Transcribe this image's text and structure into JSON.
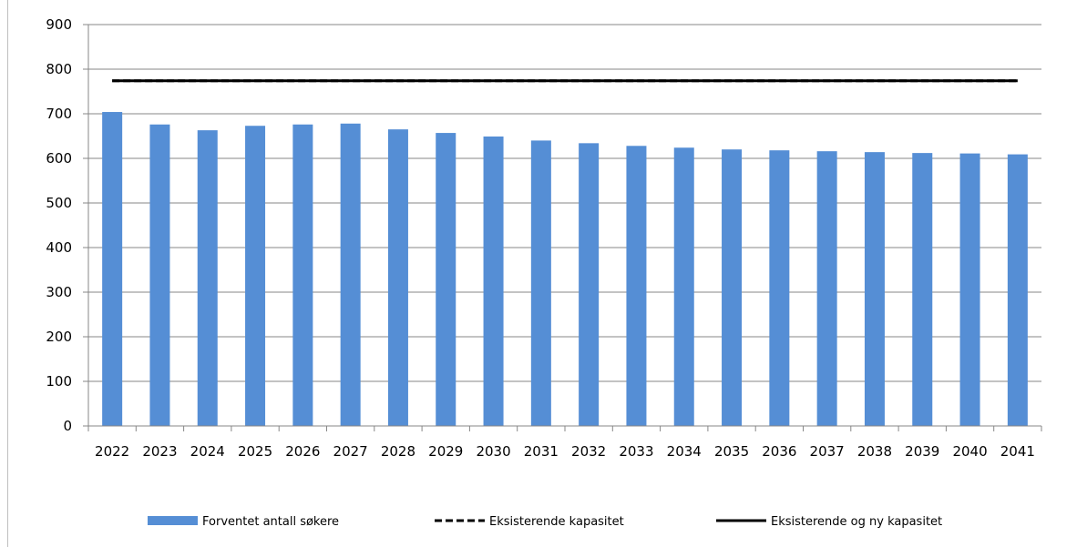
{
  "chart_data": {
    "type": "bar",
    "categories": [
      "2022",
      "2023",
      "2024",
      "2025",
      "2026",
      "2027",
      "2028",
      "2029",
      "2030",
      "2031",
      "2032",
      "2033",
      "2034",
      "2035",
      "2036",
      "2037",
      "2038",
      "2039",
      "2040",
      "2041"
    ],
    "series": [
      {
        "name": "Forventet antall søkere",
        "type": "bar",
        "color": "#558ed5",
        "values": [
          704,
          676,
          663,
          673,
          676,
          678,
          665,
          657,
          649,
          640,
          634,
          628,
          624,
          620,
          618,
          616,
          614,
          612,
          611,
          609
        ]
      },
      {
        "name": "Eksisterende kapasitet",
        "type": "line",
        "style": "dashed",
        "color": "#000000",
        "values": [
          774,
          774,
          774,
          774,
          774,
          774,
          774,
          774,
          774,
          774,
          774,
          774,
          774,
          774,
          774,
          774,
          774,
          774,
          774,
          774
        ]
      },
      {
        "name": "Eksisterende og ny kapasitet",
        "type": "line",
        "style": "solid",
        "color": "#000000",
        "values": [
          774,
          774,
          774,
          774,
          774,
          774,
          774,
          774,
          774,
          774,
          774,
          774,
          774,
          774,
          774,
          774,
          774,
          774,
          774,
          774
        ]
      }
    ],
    "ylim": [
      0,
      900
    ],
    "yticks": [
      "0",
      "100",
      "200",
      "300",
      "400",
      "500",
      "600",
      "700",
      "800",
      "900"
    ],
    "grid": true,
    "legend": "bottom",
    "title": "",
    "xlabel": "",
    "ylabel": ""
  }
}
